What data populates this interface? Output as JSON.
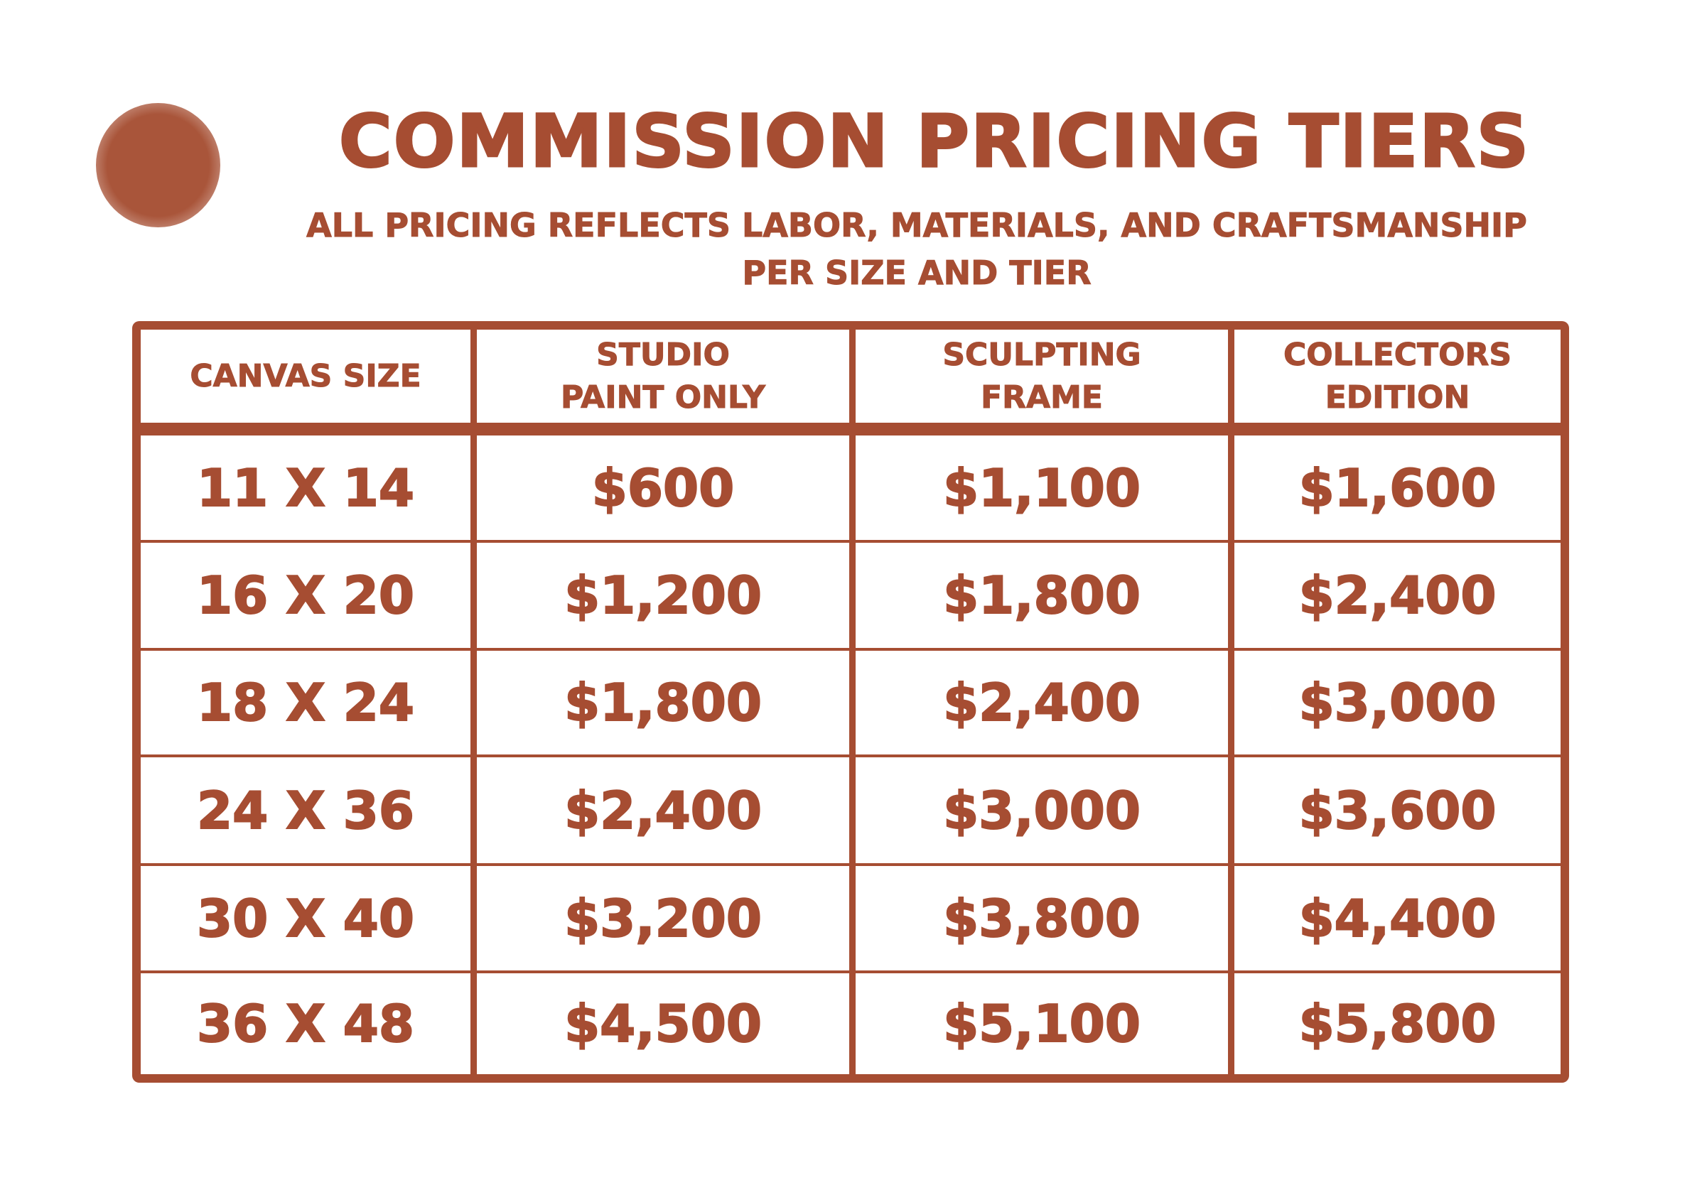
{
  "title": "COMMISSION PRICING TIERS",
  "subtitle_line1": "ALL PRICING REFLECTS LABOR, MATERIALS, AND CRAFTSMANSHIP",
  "subtitle_line2": "PER SIZE AND TIER",
  "colors": {
    "accent": "#a64d32",
    "background": "#ffffff"
  },
  "table": {
    "headers": [
      {
        "line1": "CANVAS SIZE",
        "line2": ""
      },
      {
        "line1": "STUDIO",
        "line2": "PAINT ONLY"
      },
      {
        "line1": "SCULPTING",
        "line2": "FRAME"
      },
      {
        "line1": "COLLECTORS",
        "line2": "EDITION"
      }
    ],
    "rows": [
      [
        "11 X 14",
        "$600",
        "$1,100",
        "$1,600"
      ],
      [
        "16 X 20",
        "$1,200",
        "$1,800",
        "$2,400"
      ],
      [
        "18 X 24",
        "$1,800",
        "$2,400",
        "$3,000"
      ],
      [
        "24 X 36",
        "$2,400",
        "$3,000",
        "$3,600"
      ],
      [
        "30 X 40",
        "$3,200",
        "$3,800",
        "$4,400"
      ],
      [
        "36 X 48",
        "$4,500",
        "$5,100",
        "$5,800"
      ]
    ]
  }
}
